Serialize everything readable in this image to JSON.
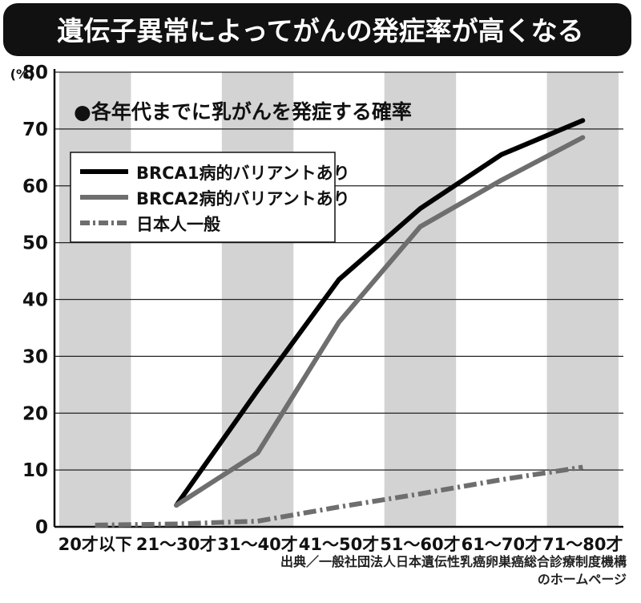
{
  "title": "遺伝子異常によってがんの発症率が高くなる",
  "subtitle": "●各年代までに乳がんを発症する確率",
  "source_line1": "出典／一般社団法人日本遺伝性乳癌卵巣癌総合診療制度機構",
  "source_line2": "のホームページ",
  "chart_data": {
    "type": "line",
    "title": "遺伝子異常によってがんの発症率が高くなる",
    "subtitle": "●各年代までに乳がんを発症する確率",
    "ylabel": "(%)",
    "xlabel": "",
    "ylim": [
      0,
      80
    ],
    "yticks": [
      "0",
      "10",
      "20",
      "30",
      "40",
      "50",
      "60",
      "70",
      "80"
    ],
    "categories": [
      "20才以下",
      "21～30才",
      "31～40才",
      "41～50才",
      "51～60才",
      "61～70才",
      "71～80才"
    ],
    "series": [
      {
        "name": "BRCA1病的バリアントあり",
        "color": "#000000",
        "style": "solid",
        "values": [
          null,
          3.8,
          24,
          43.5,
          56,
          65.5,
          71.5
        ]
      },
      {
        "name": "BRCA2病的バリアントあり",
        "color": "#6e6e6e",
        "style": "solid",
        "values": [
          null,
          3.8,
          13,
          36,
          52.8,
          61,
          68.5
        ]
      },
      {
        "name": "日本人一般",
        "color": "#6e6e6e",
        "style": "dashdot",
        "values": [
          0.3,
          0.5,
          1,
          3.5,
          5.8,
          8.3,
          10.5
        ]
      }
    ],
    "grid": "alternating vertical bands",
    "band_color": "#d3d3d3",
    "legend_position": "top-left"
  }
}
